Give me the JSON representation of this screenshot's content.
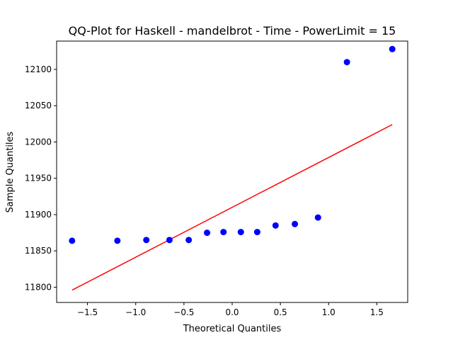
{
  "chart_data": {
    "type": "scatter",
    "title": "QQ-Plot for Haskell - mandelbrot - Time - PowerLimit = 15",
    "xlabel": "Theoretical Quantiles",
    "ylabel": "Sample Quantiles",
    "xlim": [
      -1.82,
      1.82
    ],
    "ylim": [
      11779,
      12139
    ],
    "grid": false,
    "x_ticks": [
      -1.5,
      -1.0,
      -0.5,
      0.0,
      0.5,
      1.0,
      1.5
    ],
    "x_tick_labels": [
      "−1.5",
      "−1.0",
      "−0.5",
      "0.0",
      "0.5",
      "1.0",
      "1.5"
    ],
    "y_ticks": [
      11800,
      11850,
      11900,
      11950,
      12000,
      12050,
      12100
    ],
    "y_tick_labels": [
      "11800",
      "11850",
      "11900",
      "11950",
      "12000",
      "12050",
      "12100"
    ],
    "series": [
      {
        "name": "samples",
        "kind": "scatter",
        "color": "#0000ff",
        "x": [
          -1.66,
          -1.19,
          -0.89,
          -0.65,
          -0.45,
          -0.26,
          -0.09,
          0.09,
          0.26,
          0.45,
          0.65,
          0.89,
          1.19,
          1.66
        ],
        "y": [
          11864,
          11864,
          11865,
          11865,
          11865,
          11875,
          11876,
          11876,
          11876,
          11885,
          11887,
          11896,
          12110,
          12128
        ]
      },
      {
        "name": "reference line",
        "kind": "line",
        "color": "#ff0000",
        "x": [
          -1.66,
          1.66
        ],
        "y": [
          11796,
          12024
        ]
      }
    ]
  }
}
